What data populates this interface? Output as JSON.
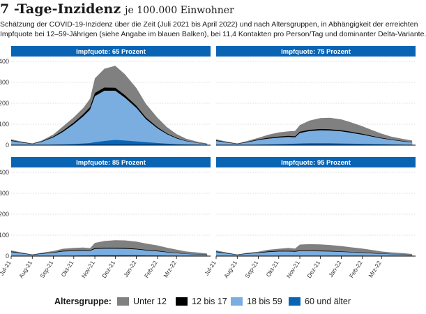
{
  "header": {
    "title": "7 -Tage-Inzidenz",
    "subtitle": "je 100.000 Einwohner",
    "description_line1": "Schätzung der COVID-19-Inzidenz über die Zeit (Juli 2021 bis April 2022) und nach Altersgruppen, in Abhängigkeit der erreichten",
    "description_line2": "Impfquote bei 12–59-Jährigen (siehe Angabe im blauen Balken), bei 11,4 Kontakten pro Person/Tag und dominanter Delta-Variante."
  },
  "legend": {
    "title": "Altersgruppe:",
    "items": [
      {
        "label": "Unter 12",
        "color": "#808080"
      },
      {
        "label": "12 bis 17",
        "color": "#000000"
      },
      {
        "label": "18 bis 59",
        "color": "#7aaee0"
      },
      {
        "label": "60 und älter",
        "color": "#0a64b4"
      }
    ]
  },
  "colors": {
    "banner": "#0a64b4",
    "banner_text": "#ffffff",
    "grid": "#bbbbbb",
    "baseline": "#000000"
  },
  "chart_data": [
    {
      "type": "area",
      "stacked": true,
      "panel_title": "Impfquote: 65 Prozent",
      "x": [
        "2021-07-01",
        "2021-07-15",
        "2021-08-01",
        "2021-08-15",
        "2021-09-01",
        "2021-09-15",
        "2021-10-01",
        "2021-10-15",
        "2021-10-25",
        "2021-11-01",
        "2021-11-15",
        "2021-12-01",
        "2021-12-15",
        "2022-01-01",
        "2022-01-15",
        "2022-02-01",
        "2022-02-15",
        "2022-03-01",
        "2022-03-15",
        "2022-04-01",
        "2022-04-15"
      ],
      "yticks": [
        0,
        100,
        200,
        300,
        400
      ],
      "ylim": [
        0,
        420
      ],
      "grid": true,
      "series": [
        {
          "name": "60 und älter",
          "values": [
            2,
            1,
            0,
            1,
            2,
            3,
            5,
            8,
            10,
            14,
            20,
            25,
            22,
            18,
            14,
            10,
            7,
            4,
            3,
            2,
            1
          ]
        },
        {
          "name": "18 bis 59",
          "values": [
            18,
            12,
            6,
            15,
            35,
            60,
            95,
            130,
            160,
            220,
            240,
            235,
            205,
            160,
            110,
            70,
            45,
            28,
            16,
            8,
            4
          ]
        },
        {
          "name": "12 bis 17",
          "values": [
            3,
            2,
            1,
            2,
            4,
            6,
            8,
            10,
            12,
            15,
            15,
            14,
            12,
            10,
            8,
            6,
            4,
            3,
            2,
            1,
            1
          ]
        },
        {
          "name": "Unter 12",
          "values": [
            5,
            3,
            1,
            4,
            10,
            20,
            25,
            30,
            40,
            70,
            90,
            105,
            100,
            85,
            65,
            45,
            30,
            18,
            10,
            5,
            2
          ]
        }
      ]
    },
    {
      "type": "area",
      "stacked": true,
      "panel_title": "Impfquote: 75 Prozent",
      "x": [
        "2021-07-01",
        "2021-07-15",
        "2021-08-01",
        "2021-08-15",
        "2021-09-01",
        "2021-09-15",
        "2021-10-01",
        "2021-10-15",
        "2021-10-25",
        "2021-11-01",
        "2021-11-15",
        "2021-12-01",
        "2021-12-15",
        "2022-01-01",
        "2022-01-15",
        "2022-02-01",
        "2022-02-15",
        "2022-03-01",
        "2022-03-15",
        "2022-04-01",
        "2022-04-15"
      ],
      "ylim": [
        0,
        420
      ],
      "grid": true,
      "series": [
        {
          "name": "60 und älter",
          "values": [
            2,
            1,
            0,
            1,
            2,
            3,
            4,
            6,
            7,
            8,
            9,
            9,
            9,
            8,
            7,
            6,
            5,
            4,
            3,
            2,
            1
          ]
        },
        {
          "name": "18 bis 59",
          "values": [
            18,
            12,
            6,
            12,
            22,
            28,
            32,
            33,
            30,
            50,
            58,
            62,
            61,
            58,
            52,
            44,
            36,
            28,
            22,
            16,
            12
          ]
        },
        {
          "name": "12 bis 17",
          "values": [
            3,
            2,
            1,
            2,
            3,
            4,
            5,
            5,
            5,
            6,
            6,
            6,
            6,
            5,
            5,
            4,
            3,
            3,
            2,
            2,
            1
          ]
        },
        {
          "name": "Unter 12",
          "values": [
            5,
            3,
            1,
            4,
            8,
            14,
            20,
            22,
            26,
            32,
            44,
            52,
            55,
            52,
            45,
            36,
            28,
            20,
            14,
            10,
            8
          ]
        }
      ]
    },
    {
      "type": "area",
      "stacked": true,
      "panel_title": "Impfquote: 85 Prozent",
      "x": [
        "2021-07-01",
        "2021-07-15",
        "2021-08-01",
        "2021-08-15",
        "2021-09-01",
        "2021-09-15",
        "2021-10-01",
        "2021-10-15",
        "2021-10-25",
        "2021-11-01",
        "2021-11-15",
        "2021-12-01",
        "2021-12-15",
        "2022-01-01",
        "2022-01-15",
        "2022-02-01",
        "2022-02-15",
        "2022-03-01",
        "2022-03-15",
        "2022-04-01",
        "2022-04-15"
      ],
      "yticks": [
        0,
        100,
        200,
        300,
        400
      ],
      "ylim": [
        0,
        420
      ],
      "grid": true,
      "series": [
        {
          "name": "60 und älter",
          "values": [
            1,
            1,
            0,
            1,
            1,
            2,
            2,
            3,
            3,
            4,
            4,
            4,
            4,
            4,
            3,
            3,
            2,
            2,
            1,
            1,
            1
          ]
        },
        {
          "name": "18 bis 59",
          "values": [
            18,
            12,
            6,
            10,
            15,
            20,
            22,
            23,
            22,
            30,
            32,
            32,
            31,
            28,
            24,
            20,
            16,
            12,
            9,
            7,
            5
          ]
        },
        {
          "name": "12 bis 17",
          "values": [
            3,
            2,
            1,
            2,
            2,
            3,
            3,
            3,
            3,
            4,
            4,
            4,
            4,
            3,
            3,
            3,
            2,
            2,
            1,
            1,
            1
          ]
        },
        {
          "name": "Unter 12",
          "values": [
            5,
            3,
            1,
            3,
            6,
            10,
            12,
            12,
            10,
            25,
            32,
            36,
            36,
            34,
            30,
            25,
            20,
            15,
            11,
            8,
            5
          ]
        }
      ]
    },
    {
      "type": "area",
      "stacked": true,
      "panel_title": "Impfquote: 95 Prozent",
      "x": [
        "2021-07-01",
        "2021-07-15",
        "2021-08-01",
        "2021-08-15",
        "2021-09-01",
        "2021-09-15",
        "2021-10-01",
        "2021-10-15",
        "2021-10-25",
        "2021-11-01",
        "2021-11-15",
        "2021-12-01",
        "2021-12-15",
        "2022-01-01",
        "2022-01-15",
        "2022-02-01",
        "2022-02-15",
        "2022-03-01",
        "2022-03-15",
        "2022-04-01",
        "2022-04-15"
      ],
      "ylim": [
        0,
        420
      ],
      "grid": true,
      "series": [
        {
          "name": "60 und älter",
          "values": [
            1,
            1,
            0,
            1,
            1,
            1,
            2,
            2,
            2,
            2,
            2,
            2,
            2,
            2,
            2,
            2,
            1,
            1,
            1,
            1,
            0
          ]
        },
        {
          "name": "18 bis 59",
          "values": [
            18,
            12,
            6,
            10,
            14,
            18,
            20,
            20,
            19,
            22,
            22,
            21,
            20,
            18,
            16,
            14,
            12,
            10,
            8,
            6,
            5
          ]
        },
        {
          "name": "12 bis 17",
          "values": [
            3,
            2,
            1,
            2,
            2,
            3,
            3,
            3,
            3,
            3,
            3,
            3,
            3,
            2,
            2,
            2,
            2,
            1,
            1,
            1,
            1
          ]
        },
        {
          "name": "Unter 12",
          "values": [
            5,
            3,
            1,
            2,
            4,
            8,
            10,
            14,
            12,
            28,
            30,
            30,
            28,
            26,
            22,
            18,
            14,
            10,
            8,
            6,
            4
          ]
        }
      ]
    }
  ],
  "x_tick_labels": [
    "Jul-21",
    "Aug-21",
    "Sep-21",
    "Okt-21",
    "Nov-21",
    "Dez-21",
    "Jan-22",
    "Feb-22",
    "Mrz-22"
  ],
  "y_tick_labels_visible": [
    "400",
    "300",
    "200",
    "100",
    "0"
  ]
}
